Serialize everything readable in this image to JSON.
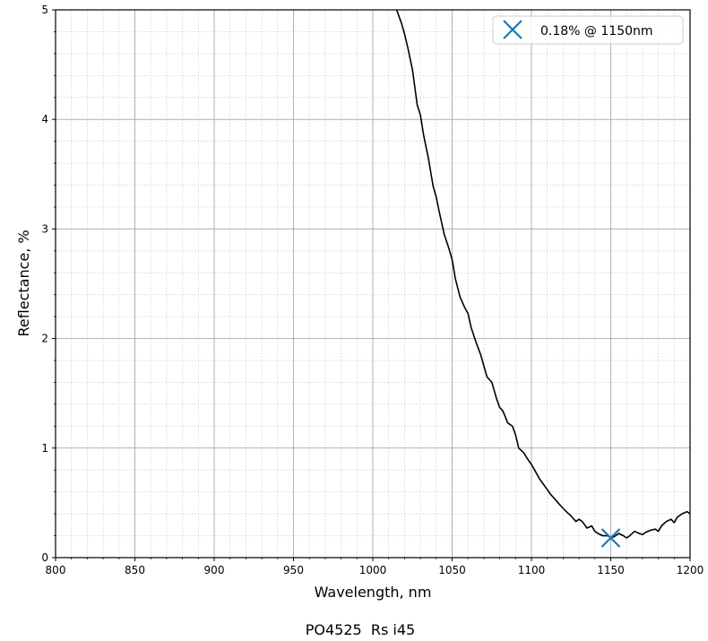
{
  "chart_data": {
    "type": "line",
    "xlabel": "Wavelength, nm",
    "ylabel": "Reflectance, %",
    "caption": "PO4525  Rs i45",
    "xlim": [
      800,
      1200
    ],
    "ylim": [
      0,
      5
    ],
    "xticks": [
      800,
      850,
      900,
      950,
      1000,
      1050,
      1100,
      1150,
      1200
    ],
    "yticks": [
      0,
      1,
      2,
      3,
      4,
      5
    ],
    "grid": true,
    "minor_grid": true,
    "legend_position": "top-right",
    "series": [
      {
        "color": "#000000",
        "x": [
          1015,
          1018,
          1020,
          1022,
          1025,
          1028,
          1030,
          1032,
          1035,
          1038,
          1040,
          1042,
          1045,
          1048,
          1050,
          1052,
          1055,
          1058,
          1060,
          1062,
          1065,
          1068,
          1070,
          1072,
          1075,
          1078,
          1080,
          1082,
          1085,
          1088,
          1090,
          1092,
          1095,
          1098,
          1100,
          1102,
          1105,
          1108,
          1110,
          1112,
          1115,
          1118,
          1120,
          1122,
          1125,
          1128,
          1130,
          1132,
          1135,
          1138,
          1140,
          1142,
          1145,
          1148,
          1150,
          1152,
          1155,
          1158,
          1160,
          1162,
          1165,
          1168,
          1170,
          1172,
          1175,
          1178,
          1180,
          1182,
          1185,
          1188,
          1190,
          1192,
          1195,
          1198,
          1200
        ],
        "y": [
          5.0,
          4.88,
          4.78,
          4.66,
          4.45,
          4.13,
          4.04,
          3.86,
          3.65,
          3.39,
          3.29,
          3.15,
          2.95,
          2.82,
          2.72,
          2.55,
          2.38,
          2.28,
          2.23,
          2.1,
          1.97,
          1.85,
          1.75,
          1.65,
          1.6,
          1.45,
          1.37,
          1.34,
          1.23,
          1.2,
          1.12,
          1.0,
          0.96,
          0.89,
          0.85,
          0.8,
          0.72,
          0.66,
          0.62,
          0.58,
          0.53,
          0.48,
          0.45,
          0.42,
          0.38,
          0.33,
          0.35,
          0.33,
          0.27,
          0.29,
          0.24,
          0.22,
          0.2,
          0.2,
          0.18,
          0.19,
          0.22,
          0.2,
          0.18,
          0.2,
          0.24,
          0.22,
          0.21,
          0.23,
          0.25,
          0.26,
          0.24,
          0.29,
          0.33,
          0.35,
          0.32,
          0.37,
          0.4,
          0.42,
          0.4
        ]
      }
    ],
    "marker": {
      "label": "0.18% @ 1150nm",
      "x": 1150,
      "y": 0.18,
      "color": "#1f77b4",
      "symbol": "x"
    }
  }
}
